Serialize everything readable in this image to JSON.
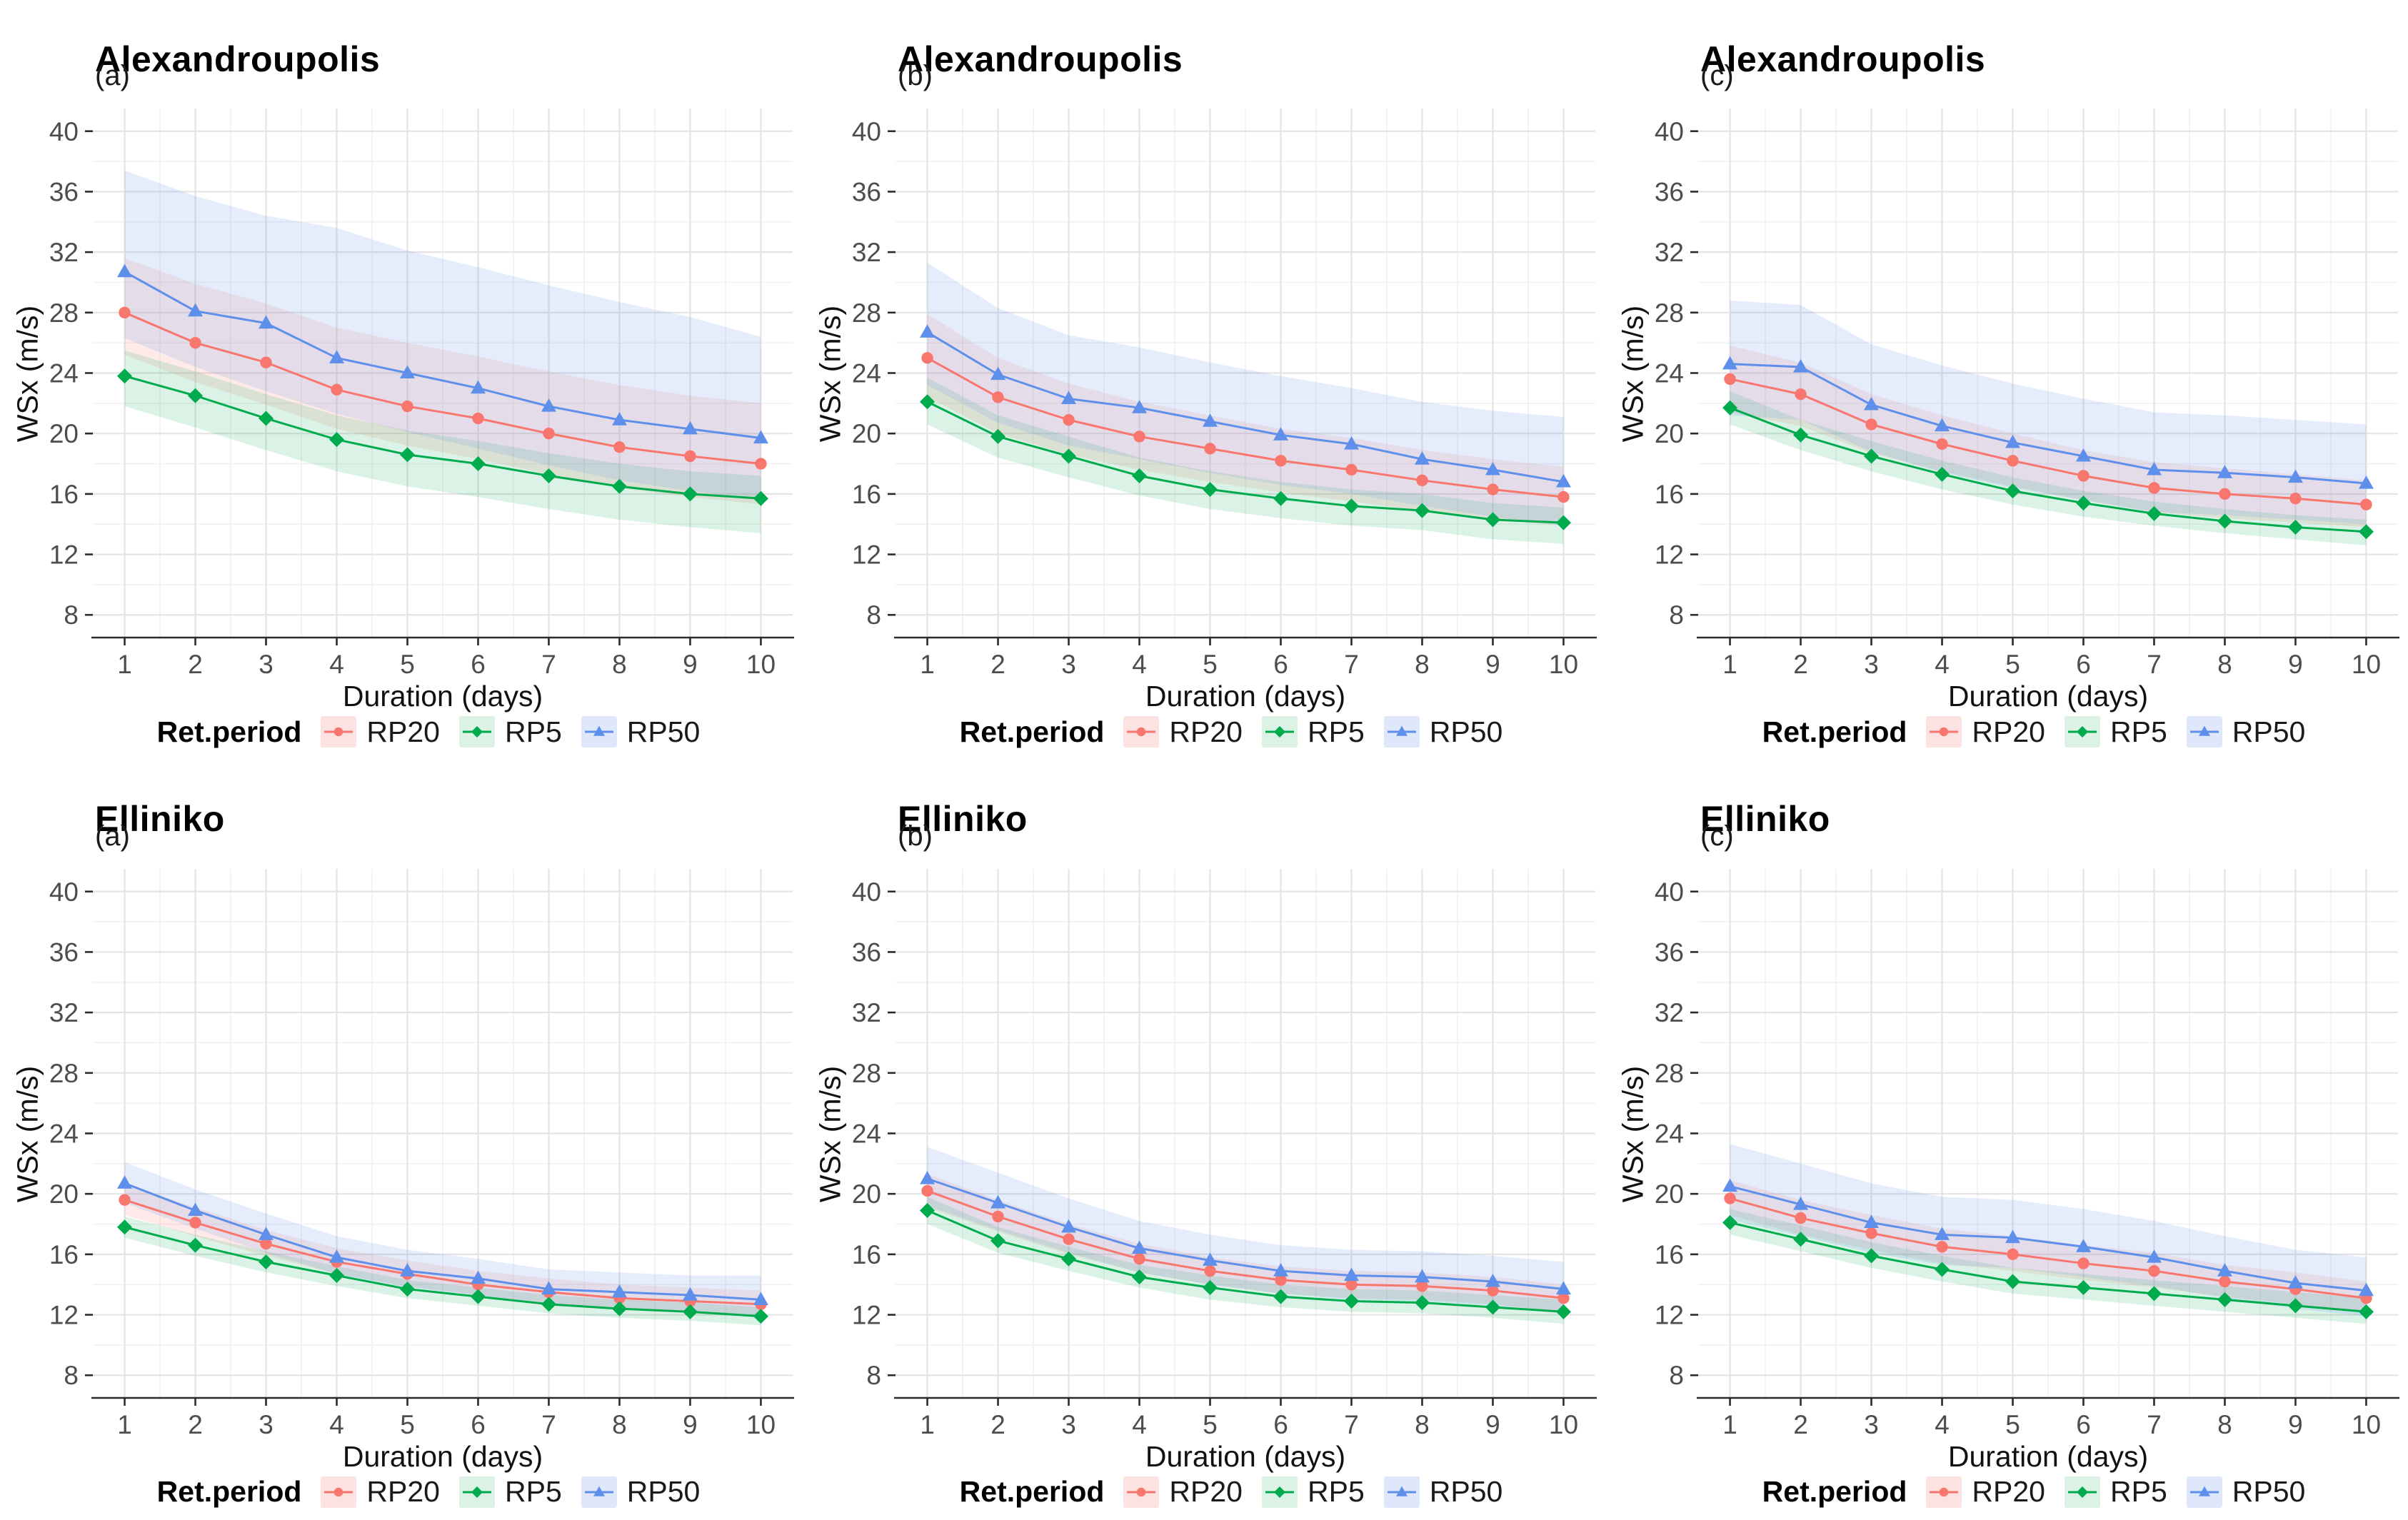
{
  "page": {
    "background": "#ffffff"
  },
  "legend": {
    "title": "Ret.period",
    "items": [
      {
        "label": "RP20",
        "color": "#F8766D",
        "swatch": "#FCE3E1",
        "marker": "circle"
      },
      {
        "label": "RP5",
        "color": "#00AB4E",
        "swatch": "#DCF2E5",
        "marker": "diamond"
      },
      {
        "label": "RP50",
        "color": "#5E8FEA",
        "swatch": "#DEE8FA",
        "marker": "triangle"
      }
    ]
  },
  "axes": {
    "x_label": "Duration (days)",
    "y_label": "WSx (m/s)",
    "x_ticks": [
      1,
      2,
      3,
      4,
      5,
      6,
      7,
      8,
      9,
      10
    ],
    "x_minor": [
      1.5,
      2.5,
      3.5,
      4.5,
      5.5,
      6.5,
      7.5,
      8.5,
      9.5
    ],
    "y_ticks": [
      8,
      12,
      16,
      20,
      24,
      28,
      32,
      36,
      40
    ],
    "y_minor": [
      10,
      14,
      18,
      22,
      26,
      30,
      34,
      38
    ],
    "x_domain": [
      0.55,
      10.45
    ],
    "y_domain": [
      6.5,
      41.5
    ],
    "major_grid_color": "#E4E4E4",
    "minor_grid_color": "#F1F1F1",
    "axis_line_color": "#2b2b2b",
    "tick_label_color": "#4d4d4d"
  },
  "chart_data": [
    {
      "type": "line",
      "title": "Alexandroupolis",
      "subtitle": "(a)",
      "xlabel": "Duration (days)",
      "ylabel": "WSx (m/s)",
      "x": [
        1,
        2,
        3,
        4,
        5,
        6,
        7,
        8,
        9,
        10
      ],
      "ylim": [
        8,
        40
      ],
      "grid": true,
      "legend_position": "bottom",
      "series": [
        {
          "name": "RP20",
          "color": "#F8766D",
          "fill": "rgba(248,118,109,0.15)",
          "marker": "circle",
          "values": [
            28.0,
            26.0,
            24.7,
            22.9,
            21.8,
            21.0,
            20.0,
            19.1,
            18.5,
            18.0
          ],
          "upper": [
            31.6,
            29.9,
            28.6,
            27.0,
            26.0,
            25.1,
            24.1,
            23.2,
            22.5,
            22.0
          ],
          "lower": [
            25.2,
            23.4,
            21.9,
            20.3,
            19.2,
            18.3,
            17.3,
            16.4,
            15.8,
            15.3
          ]
        },
        {
          "name": "RP5",
          "color": "#00AB4E",
          "fill": "rgba(0,171,78,0.14)",
          "marker": "diamond",
          "values": [
            23.8,
            22.5,
            21.0,
            19.6,
            18.6,
            18.0,
            17.2,
            16.5,
            16.0,
            15.7
          ],
          "upper": [
            25.5,
            24.1,
            22.6,
            21.2,
            20.2,
            19.5,
            18.7,
            18.0,
            17.5,
            17.2
          ],
          "lower": [
            21.8,
            20.4,
            18.9,
            17.5,
            16.5,
            15.8,
            15.0,
            14.3,
            13.8,
            13.4
          ]
        },
        {
          "name": "RP50",
          "color": "#5E8FEA",
          "fill": "rgba(94,143,234,0.16)",
          "marker": "triangle",
          "values": [
            30.7,
            28.1,
            27.3,
            25.0,
            24.0,
            23.0,
            21.8,
            20.9,
            20.3,
            19.7
          ],
          "upper": [
            37.4,
            35.7,
            34.4,
            33.6,
            32.1,
            31.0,
            29.8,
            28.7,
            27.7,
            26.4
          ],
          "lower": [
            26.3,
            24.4,
            22.8,
            21.3,
            20.1,
            19.0,
            17.9,
            16.9,
            16.2,
            15.6
          ]
        }
      ]
    },
    {
      "type": "line",
      "title": "Alexandroupolis",
      "subtitle": "(b)",
      "xlabel": "Duration (days)",
      "ylabel": "WSx (m/s)",
      "x": [
        1,
        2,
        3,
        4,
        5,
        6,
        7,
        8,
        9,
        10
      ],
      "ylim": [
        8,
        40
      ],
      "grid": true,
      "legend_position": "bottom",
      "series": [
        {
          "name": "RP20",
          "color": "#F8766D",
          "fill": "rgba(248,118,109,0.15)",
          "marker": "circle",
          "values": [
            25.0,
            22.4,
            20.9,
            19.8,
            19.0,
            18.2,
            17.6,
            16.9,
            16.3,
            15.8
          ],
          "upper": [
            27.9,
            25.0,
            23.3,
            22.1,
            21.2,
            20.3,
            19.7,
            18.9,
            18.3,
            17.8
          ],
          "lower": [
            22.4,
            20.0,
            18.6,
            17.6,
            16.8,
            16.1,
            15.5,
            14.9,
            14.3,
            13.9
          ]
        },
        {
          "name": "RP5",
          "color": "#00AB4E",
          "fill": "rgba(0,171,78,0.14)",
          "marker": "diamond",
          "values": [
            22.1,
            19.8,
            18.5,
            17.2,
            16.3,
            15.7,
            15.2,
            14.9,
            14.3,
            14.1
          ],
          "upper": [
            23.7,
            21.2,
            19.8,
            18.4,
            17.5,
            16.8,
            16.3,
            16.0,
            15.4,
            15.1
          ],
          "lower": [
            20.6,
            18.4,
            17.1,
            15.9,
            15.0,
            14.4,
            13.9,
            13.6,
            13.0,
            12.7
          ]
        },
        {
          "name": "RP50",
          "color": "#5E8FEA",
          "fill": "rgba(94,143,234,0.16)",
          "marker": "triangle",
          "values": [
            26.7,
            23.9,
            22.3,
            21.7,
            20.8,
            19.9,
            19.3,
            18.3,
            17.6,
            16.8
          ],
          "upper": [
            31.3,
            28.3,
            26.5,
            25.7,
            24.7,
            23.8,
            23.0,
            22.1,
            21.5,
            21.1
          ],
          "lower": [
            23.2,
            20.7,
            19.2,
            18.3,
            17.4,
            16.6,
            16.0,
            15.2,
            14.5,
            13.9
          ]
        }
      ]
    },
    {
      "type": "line",
      "title": "Alexandroupolis",
      "subtitle": "(c)",
      "xlabel": "Duration (days)",
      "ylabel": "WSx (m/s)",
      "x": [
        1,
        2,
        3,
        4,
        5,
        6,
        7,
        8,
        9,
        10
      ],
      "ylim": [
        8,
        40
      ],
      "grid": true,
      "legend_position": "bottom",
      "series": [
        {
          "name": "RP20",
          "color": "#F8766D",
          "fill": "rgba(248,118,109,0.15)",
          "marker": "circle",
          "values": [
            23.6,
            22.6,
            20.6,
            19.3,
            18.2,
            17.2,
            16.4,
            16.0,
            15.7,
            15.3
          ],
          "upper": [
            25.8,
            24.7,
            22.6,
            21.2,
            20.0,
            18.9,
            18.1,
            17.7,
            17.3,
            16.9
          ],
          "lower": [
            21.4,
            20.5,
            18.7,
            17.5,
            16.5,
            15.6,
            14.8,
            14.4,
            14.1,
            13.8
          ]
        },
        {
          "name": "RP5",
          "color": "#00AB4E",
          "fill": "rgba(0,171,78,0.14)",
          "marker": "diamond",
          "values": [
            21.7,
            19.9,
            18.5,
            17.3,
            16.2,
            15.4,
            14.7,
            14.2,
            13.8,
            13.5
          ],
          "upper": [
            22.8,
            20.9,
            19.5,
            18.2,
            17.1,
            16.2,
            15.5,
            15.0,
            14.6,
            14.3
          ],
          "lower": [
            20.6,
            18.9,
            17.5,
            16.3,
            15.3,
            14.5,
            13.9,
            13.4,
            13.0,
            12.6
          ]
        },
        {
          "name": "RP50",
          "color": "#5E8FEA",
          "fill": "rgba(94,143,234,0.16)",
          "marker": "triangle",
          "values": [
            24.6,
            24.4,
            21.9,
            20.5,
            19.4,
            18.5,
            17.6,
            17.4,
            17.1,
            16.7
          ],
          "upper": [
            28.8,
            28.5,
            25.9,
            24.5,
            23.3,
            22.3,
            21.4,
            21.2,
            20.9,
            20.6
          ],
          "lower": [
            21.2,
            20.9,
            18.8,
            17.4,
            16.4,
            15.6,
            14.8,
            14.6,
            14.3,
            14.0
          ]
        }
      ]
    },
    {
      "type": "line",
      "title": "Elliniko",
      "subtitle": "(a)",
      "xlabel": "Duration (days)",
      "ylabel": "WSx (m/s)",
      "x": [
        1,
        2,
        3,
        4,
        5,
        6,
        7,
        8,
        9,
        10
      ],
      "ylim": [
        8,
        40
      ],
      "grid": true,
      "legend_position": "bottom",
      "series": [
        {
          "name": "RP20",
          "color": "#F8766D",
          "fill": "rgba(248,118,109,0.15)",
          "marker": "circle",
          "values": [
            19.6,
            18.1,
            16.7,
            15.5,
            14.7,
            14.0,
            13.5,
            13.1,
            12.9,
            12.7
          ],
          "upper": [
            20.7,
            19.1,
            17.6,
            16.4,
            15.6,
            14.9,
            14.4,
            14.0,
            13.8,
            13.6
          ],
          "lower": [
            18.6,
            17.2,
            15.9,
            14.7,
            13.9,
            13.3,
            12.8,
            12.4,
            12.2,
            12.0
          ]
        },
        {
          "name": "RP5",
          "color": "#00AB4E",
          "fill": "rgba(0,171,78,0.14)",
          "marker": "diamond",
          "values": [
            17.8,
            16.6,
            15.5,
            14.6,
            13.7,
            13.2,
            12.7,
            12.4,
            12.2,
            11.9
          ],
          "upper": [
            18.5,
            17.3,
            16.2,
            15.2,
            14.3,
            13.8,
            13.3,
            13.0,
            12.8,
            12.5
          ],
          "lower": [
            17.1,
            15.9,
            14.8,
            13.9,
            13.1,
            12.6,
            12.1,
            11.8,
            11.6,
            11.3
          ]
        },
        {
          "name": "RP50",
          "color": "#5E8FEA",
          "fill": "rgba(94,143,234,0.16)",
          "marker": "triangle",
          "values": [
            20.7,
            18.9,
            17.3,
            15.8,
            14.9,
            14.4,
            13.7,
            13.5,
            13.3,
            13.0
          ],
          "upper": [
            22.1,
            20.3,
            18.7,
            17.2,
            16.3,
            15.7,
            15.0,
            14.8,
            14.6,
            14.6
          ],
          "lower": [
            19.4,
            17.7,
            16.1,
            14.7,
            13.8,
            13.3,
            12.6,
            12.4,
            12.2,
            11.8
          ]
        }
      ]
    },
    {
      "type": "line",
      "title": "Elliniko",
      "subtitle": "(b)",
      "xlabel": "Duration (days)",
      "ylabel": "WSx (m/s)",
      "x": [
        1,
        2,
        3,
        4,
        5,
        6,
        7,
        8,
        9,
        10
      ],
      "ylim": [
        8,
        40
      ],
      "grid": true,
      "legend_position": "bottom",
      "series": [
        {
          "name": "RP20",
          "color": "#F8766D",
          "fill": "rgba(248,118,109,0.15)",
          "marker": "circle",
          "values": [
            20.2,
            18.5,
            17.0,
            15.7,
            14.9,
            14.3,
            14.0,
            13.9,
            13.6,
            13.1
          ],
          "upper": [
            21.3,
            19.6,
            18.0,
            16.7,
            15.8,
            15.2,
            14.9,
            14.8,
            14.5,
            14.0
          ],
          "lower": [
            19.1,
            17.5,
            16.0,
            14.8,
            14.0,
            13.4,
            13.1,
            13.0,
            12.7,
            12.2
          ]
        },
        {
          "name": "RP5",
          "color": "#00AB4E",
          "fill": "rgba(0,171,78,0.14)",
          "marker": "diamond",
          "values": [
            18.9,
            16.9,
            15.7,
            14.5,
            13.8,
            13.2,
            12.9,
            12.8,
            12.5,
            12.2
          ],
          "upper": [
            19.8,
            17.8,
            16.5,
            15.3,
            14.6,
            14.0,
            13.7,
            13.6,
            13.3,
            13.0
          ],
          "lower": [
            18.0,
            16.1,
            14.9,
            13.8,
            13.0,
            12.5,
            12.2,
            12.1,
            11.8,
            11.4
          ]
        },
        {
          "name": "RP50",
          "color": "#5E8FEA",
          "fill": "rgba(94,143,234,0.16)",
          "marker": "triangle",
          "values": [
            21.0,
            19.4,
            17.8,
            16.4,
            15.6,
            14.9,
            14.6,
            14.5,
            14.2,
            13.7
          ],
          "upper": [
            23.1,
            21.4,
            19.7,
            18.2,
            17.3,
            16.6,
            16.3,
            16.2,
            15.9,
            15.5
          ],
          "lower": [
            19.2,
            17.6,
            16.1,
            14.8,
            14.0,
            13.4,
            13.0,
            12.9,
            12.6,
            12.1
          ]
        }
      ]
    },
    {
      "type": "line",
      "title": "Elliniko",
      "subtitle": "(c)",
      "xlabel": "Duration (days)",
      "ylabel": "WSx (m/s)",
      "x": [
        1,
        2,
        3,
        4,
        5,
        6,
        7,
        8,
        9,
        10
      ],
      "ylim": [
        8,
        40
      ],
      "grid": true,
      "legend_position": "bottom",
      "series": [
        {
          "name": "RP20",
          "color": "#F8766D",
          "fill": "rgba(248,118,109,0.15)",
          "marker": "circle",
          "values": [
            19.7,
            18.4,
            17.4,
            16.5,
            16.0,
            15.4,
            14.9,
            14.2,
            13.7,
            13.1
          ],
          "upper": [
            20.9,
            19.6,
            18.6,
            17.7,
            17.2,
            16.6,
            16.1,
            15.3,
            14.8,
            14.2
          ],
          "lower": [
            18.6,
            17.3,
            16.3,
            15.4,
            14.9,
            14.3,
            13.8,
            13.2,
            12.7,
            12.2
          ]
        },
        {
          "name": "RP5",
          "color": "#00AB4E",
          "fill": "rgba(0,171,78,0.14)",
          "marker": "diamond",
          "values": [
            18.1,
            17.0,
            15.9,
            15.0,
            14.2,
            13.8,
            13.4,
            13.0,
            12.6,
            12.2
          ],
          "upper": [
            19.0,
            17.9,
            16.8,
            15.9,
            15.1,
            14.7,
            14.3,
            13.9,
            13.5,
            13.1
          ],
          "lower": [
            17.3,
            16.2,
            15.1,
            14.2,
            13.4,
            13.0,
            12.6,
            12.2,
            11.8,
            11.4
          ]
        },
        {
          "name": "RP50",
          "color": "#5E8FEA",
          "fill": "rgba(94,143,234,0.16)",
          "marker": "triangle",
          "values": [
            20.5,
            19.3,
            18.1,
            17.3,
            17.1,
            16.5,
            15.8,
            14.9,
            14.1,
            13.6
          ],
          "upper": [
            23.3,
            22.0,
            20.7,
            19.8,
            19.6,
            19.0,
            18.2,
            17.2,
            16.3,
            15.8
          ],
          "lower": [
            18.3,
            17.2,
            16.1,
            15.3,
            15.1,
            14.5,
            13.9,
            13.1,
            12.4,
            11.9
          ]
        }
      ]
    }
  ]
}
